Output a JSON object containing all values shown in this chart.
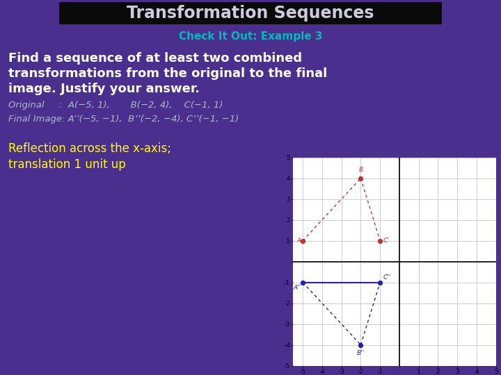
{
  "title": "Transformation Sequences",
  "subtitle": "Check It Out: Example 3",
  "body_line1": "Find a sequence of at least two combined",
  "body_line2": "transformations from the original to the final",
  "body_line3": "image. Justify your answer.",
  "orig_line": "Original     :  A(−5, 1),       B(−2, 4),    C(−1, 1)",
  "final_line": "Final Image: A’’(−5, −1),  B’’(−2, −4), C’’(−1, −1)",
  "answer_line1": "Reflection across the x-axis;",
  "answer_line2": "translation 1 unit up",
  "bg_color": "#4a2f8f",
  "title_bg": "#0a0a0a",
  "title_color": "#ccccdd",
  "subtitle_color": "#00bbbb",
  "body_color": "#ffffff",
  "orig_text_color": "#aabbcc",
  "answer_color": "#ffff00",
  "orig_points": [
    [
      -5,
      1
    ],
    [
      -2,
      4
    ],
    [
      -1,
      1
    ]
  ],
  "final_points": [
    [
      -5,
      -1
    ],
    [
      -2,
      -4
    ],
    [
      -1,
      -1
    ]
  ],
  "orig_color": "#bb3333",
  "final_color": "#2222aa",
  "xlim": [
    -5.5,
    5
  ],
  "ylim": [
    -5,
    5
  ]
}
